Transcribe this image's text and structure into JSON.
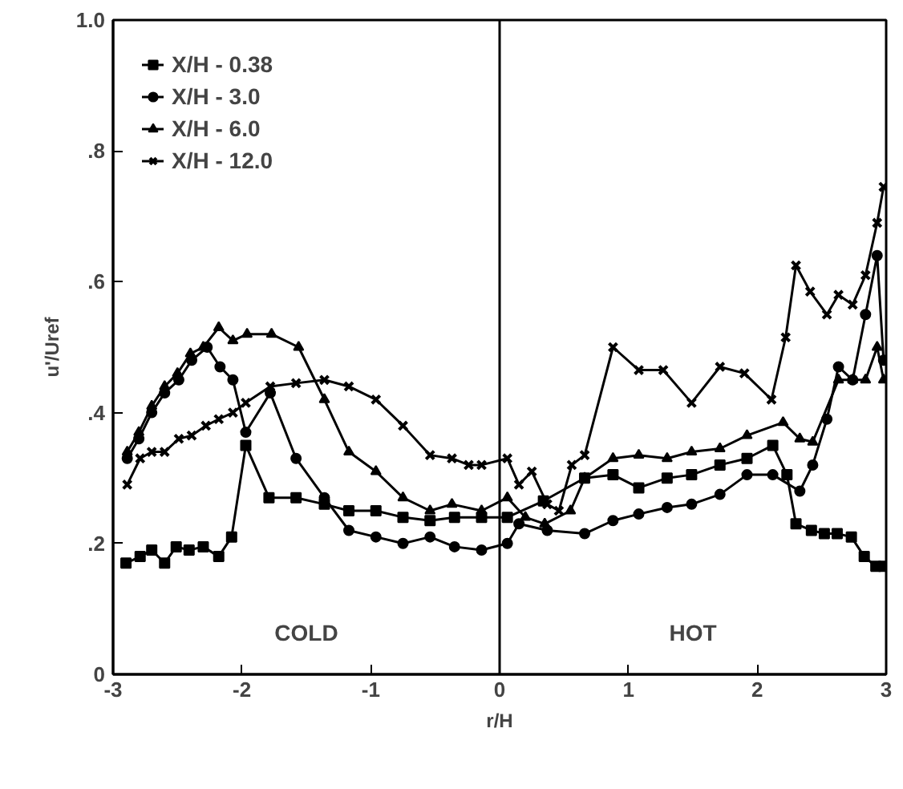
{
  "chart_data": {
    "type": "line",
    "xlabel": "r/H",
    "ylabel": "u'/Uref",
    "xlim": [
      -3,
      3
    ],
    "ylim": [
      0,
      1.0
    ],
    "xticks": [
      -3,
      -2,
      -1,
      0,
      1,
      2,
      3
    ],
    "yticks": [
      0,
      {
        "value": 0.2,
        "label": ".2"
      },
      {
        "value": 0.4,
        "label": ".4"
      },
      {
        "value": 0.6,
        "label": ".6"
      },
      {
        "value": 0.8,
        "label": ".8"
      },
      {
        "value": 1.0,
        "label": "1.0"
      }
    ],
    "grid": false,
    "legend": "top left",
    "line_style": "solid",
    "ref_lines": [
      {
        "axis": "x",
        "value": 0,
        "color": "#000000"
      }
    ],
    "annotations": [
      "COLD",
      "HOT"
    ],
    "series": [
      {
        "name": "X/H - 0.38",
        "color": "#000000",
        "marker": "square",
        "x": [
          -2.9,
          -2.79,
          -2.7,
          -2.6,
          -2.51,
          -2.41,
          -2.3,
          -2.18,
          -2.08,
          -1.97,
          -1.79,
          -1.58,
          -1.36,
          -1.17,
          -0.96,
          -0.75,
          -0.54,
          -0.35,
          -0.14,
          0.06,
          0.34,
          0.66,
          0.88,
          1.08,
          1.3,
          1.49,
          1.71,
          1.92,
          2.12,
          2.23,
          2.3,
          2.42,
          2.52,
          2.62,
          2.73,
          2.83,
          2.92,
          2.98
        ],
        "values": [
          0.17,
          0.18,
          0.19,
          0.17,
          0.195,
          0.19,
          0.195,
          0.18,
          0.21,
          0.35,
          0.27,
          0.27,
          0.26,
          0.25,
          0.25,
          0.24,
          0.235,
          0.24,
          0.24,
          0.24,
          0.265,
          0.3,
          0.305,
          0.285,
          0.3,
          0.305,
          0.32,
          0.33,
          0.35,
          0.305,
          0.23,
          0.22,
          0.215,
          0.215,
          0.21,
          0.18,
          0.165,
          0.165
        ]
      },
      {
        "name": "X/H - 3.0",
        "color": "#000000",
        "marker": "circle",
        "x": [
          -2.89,
          -2.8,
          -2.7,
          -2.6,
          -2.49,
          -2.39,
          -2.27,
          -2.17,
          -2.07,
          -1.97,
          -1.78,
          -1.58,
          -1.36,
          -1.17,
          -0.96,
          -0.75,
          -0.54,
          -0.35,
          -0.14,
          0.06,
          0.15,
          0.37,
          0.66,
          0.88,
          1.08,
          1.3,
          1.49,
          1.71,
          1.92,
          2.12,
          2.33,
          2.43,
          2.54,
          2.63,
          2.74,
          2.84,
          2.93,
          2.98
        ],
        "values": [
          0.33,
          0.36,
          0.4,
          0.43,
          0.45,
          0.48,
          0.5,
          0.47,
          0.45,
          0.37,
          0.43,
          0.33,
          0.27,
          0.22,
          0.21,
          0.2,
          0.21,
          0.195,
          0.19,
          0.2,
          0.23,
          0.22,
          0.215,
          0.235,
          0.245,
          0.255,
          0.26,
          0.275,
          0.305,
          0.305,
          0.28,
          0.32,
          0.39,
          0.47,
          0.45,
          0.55,
          0.64,
          0.48
        ]
      },
      {
        "name": "X/H - 6.0",
        "color": "#000000",
        "marker": "triangle",
        "x": [
          -2.89,
          -2.8,
          -2.7,
          -2.6,
          -2.5,
          -2.4,
          -2.3,
          -2.18,
          -2.07,
          -1.96,
          -1.77,
          -1.56,
          -1.36,
          -1.17,
          -0.96,
          -0.75,
          -0.54,
          -0.37,
          -0.14,
          0.06,
          0.2,
          0.35,
          0.55,
          0.66,
          0.88,
          1.08,
          1.3,
          1.49,
          1.71,
          1.92,
          2.2,
          2.33,
          2.43,
          2.63,
          2.74,
          2.84,
          2.93,
          2.98
        ],
        "values": [
          0.34,
          0.37,
          0.41,
          0.44,
          0.46,
          0.49,
          0.5,
          0.53,
          0.51,
          0.52,
          0.52,
          0.5,
          0.42,
          0.34,
          0.31,
          0.27,
          0.25,
          0.26,
          0.25,
          0.27,
          0.24,
          0.23,
          0.25,
          0.3,
          0.33,
          0.335,
          0.33,
          0.34,
          0.345,
          0.365,
          0.385,
          0.36,
          0.355,
          0.45,
          0.45,
          0.45,
          0.5,
          0.45
        ]
      },
      {
        "name": "X/H - 12.0",
        "color": "#000000",
        "marker": "cross",
        "x": [
          -2.89,
          -2.79,
          -2.7,
          -2.6,
          -2.49,
          -2.39,
          -2.28,
          -2.18,
          -2.07,
          -1.97,
          -1.78,
          -1.58,
          -1.36,
          -1.17,
          -0.96,
          -0.75,
          -0.54,
          -0.37,
          -0.24,
          -0.14,
          0.06,
          0.15,
          0.25,
          0.37,
          0.46,
          0.56,
          0.66,
          0.88,
          1.08,
          1.27,
          1.49,
          1.71,
          1.9,
          2.11,
          2.22,
          2.3,
          2.41,
          2.54,
          2.63,
          2.74,
          2.84,
          2.93,
          2.98
        ],
        "values": [
          0.29,
          0.33,
          0.34,
          0.34,
          0.36,
          0.365,
          0.38,
          0.39,
          0.4,
          0.415,
          0.44,
          0.445,
          0.45,
          0.44,
          0.42,
          0.38,
          0.335,
          0.33,
          0.32,
          0.32,
          0.33,
          0.29,
          0.31,
          0.26,
          0.25,
          0.32,
          0.335,
          0.5,
          0.465,
          0.465,
          0.415,
          0.47,
          0.46,
          0.42,
          0.515,
          0.625,
          0.585,
          0.55,
          0.58,
          0.565,
          0.61,
          0.69,
          0.745
        ]
      }
    ]
  }
}
